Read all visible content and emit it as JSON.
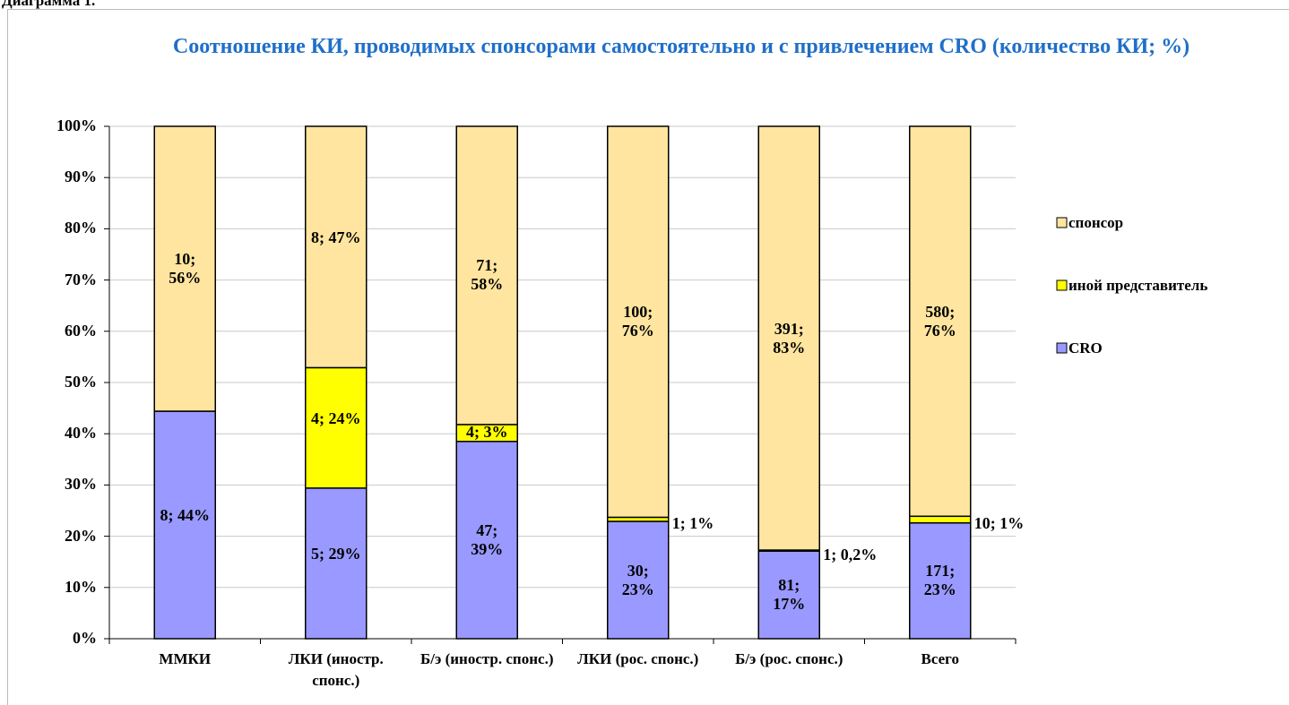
{
  "caption": "Диаграмма 1.",
  "chart_data": {
    "type": "stacked_bar_100",
    "title": "Соотношение КИ, проводимых спонсорами самостоятельно и с привлечением CRO (количество КИ; %)",
    "categories": [
      "ММКИ",
      "ЛКИ (иностр. спонс.)",
      "Б/э (иностр. спонс.)",
      "ЛКИ (рос. спонс.)",
      "Б/э (рос. спонс.)",
      "Всего"
    ],
    "series": [
      {
        "name": "CRO",
        "color": "#9999ff",
        "values": [
          44.4,
          29.4,
          38.5,
          22.9,
          17.1,
          22.6
        ],
        "value_labels": [
          "8; 44%",
          "5; 29%",
          "47; 39%",
          "30; 23%",
          "81; 17%",
          "171; 23%"
        ]
      },
      {
        "name": "иной представитель",
        "color": "#ffff00",
        "values": [
          0,
          23.5,
          3.3,
          0.8,
          0.2,
          1.3
        ],
        "value_labels": [
          null,
          "4; 24%",
          "4; 3%",
          "1; 1%",
          "1; 0,2%",
          "10; 1%"
        ]
      },
      {
        "name": "спонсор",
        "color": "#ffe59f",
        "values": [
          55.6,
          47.1,
          58.2,
          76.3,
          82.7,
          76.1
        ],
        "value_labels": [
          "10; 56%",
          "8; 47%",
          "71; 58%",
          "100; 76%",
          "391; 83%",
          "580; 76%"
        ]
      }
    ],
    "ylim": [
      0,
      100
    ],
    "yticks": [
      {
        "value": 0,
        "label": "0%"
      },
      {
        "value": 10,
        "label": "10%"
      },
      {
        "value": 20,
        "label": "20%"
      },
      {
        "value": 30,
        "label": "30%"
      },
      {
        "value": 40,
        "label": "40%"
      },
      {
        "value": 50,
        "label": "50%"
      },
      {
        "value": 60,
        "label": "60%"
      },
      {
        "value": 70,
        "label": "70%"
      },
      {
        "value": 80,
        "label": "80%"
      },
      {
        "value": 90,
        "label": "90%"
      },
      {
        "value": 100,
        "label": "100%"
      }
    ],
    "grid": true,
    "legend": "right"
  }
}
